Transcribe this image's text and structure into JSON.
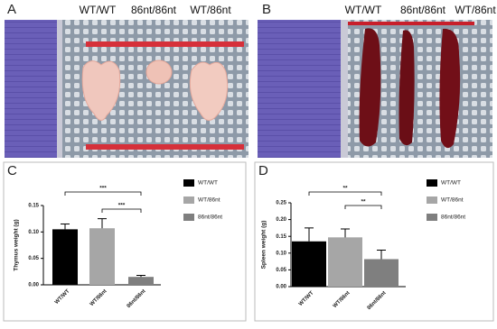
{
  "photos": [
    {
      "label": "A",
      "captions": [
        "WT/WT",
        "86nt/86nt",
        "WT/86nt"
      ]
    },
    {
      "label": "B",
      "captions": [
        "WT/WT",
        "86nt/86nt",
        "WT/86nt"
      ]
    }
  ],
  "chart_data": [
    {
      "type": "bar",
      "label": "C",
      "y_label": "Thymus weight (g)",
      "categories": [
        "WT/WT",
        "WT/86nt",
        "86nt/86nt"
      ],
      "values": [
        0.105,
        0.107,
        0.015
      ],
      "errors": [
        0.01,
        0.018,
        0.003
      ],
      "colors": [
        "#000000",
        "#a6a6a6",
        "#7f7f7f"
      ],
      "ylim": [
        0,
        0.15
      ],
      "yticks": [
        {
          "value": 0,
          "label": "0.00"
        },
        0.05,
        {
          "value": 0.1,
          "label": "0.10"
        },
        0.15
      ],
      "annotations": [
        {
          "pair": [
            0,
            2
          ],
          "text": "***"
        },
        {
          "pair": [
            1,
            2
          ],
          "text": "***"
        }
      ]
    },
    {
      "type": "bar",
      "label": "D",
      "y_label": "Spleen weight (g)",
      "categories": [
        "WT/WT",
        "WT/86nt",
        "86nt/86nt"
      ],
      "values": [
        0.135,
        0.147,
        0.082
      ],
      "errors": [
        0.04,
        0.025,
        0.027
      ],
      "colors": [
        "#000000",
        "#a6a6a6",
        "#7f7f7f"
      ],
      "ylim": [
        0,
        0.25
      ],
      "yticks": [
        {
          "value": 0,
          "label": "0.00"
        },
        0.05,
        {
          "value": 0.1,
          "label": "0.10"
        },
        0.15,
        {
          "value": 0.2,
          "label": "0.20"
        },
        0.25
      ],
      "annotations": [
        {
          "pair": [
            0,
            2
          ],
          "text": "**"
        },
        {
          "pair": [
            1,
            2
          ],
          "text": "**"
        }
      ]
    }
  ]
}
